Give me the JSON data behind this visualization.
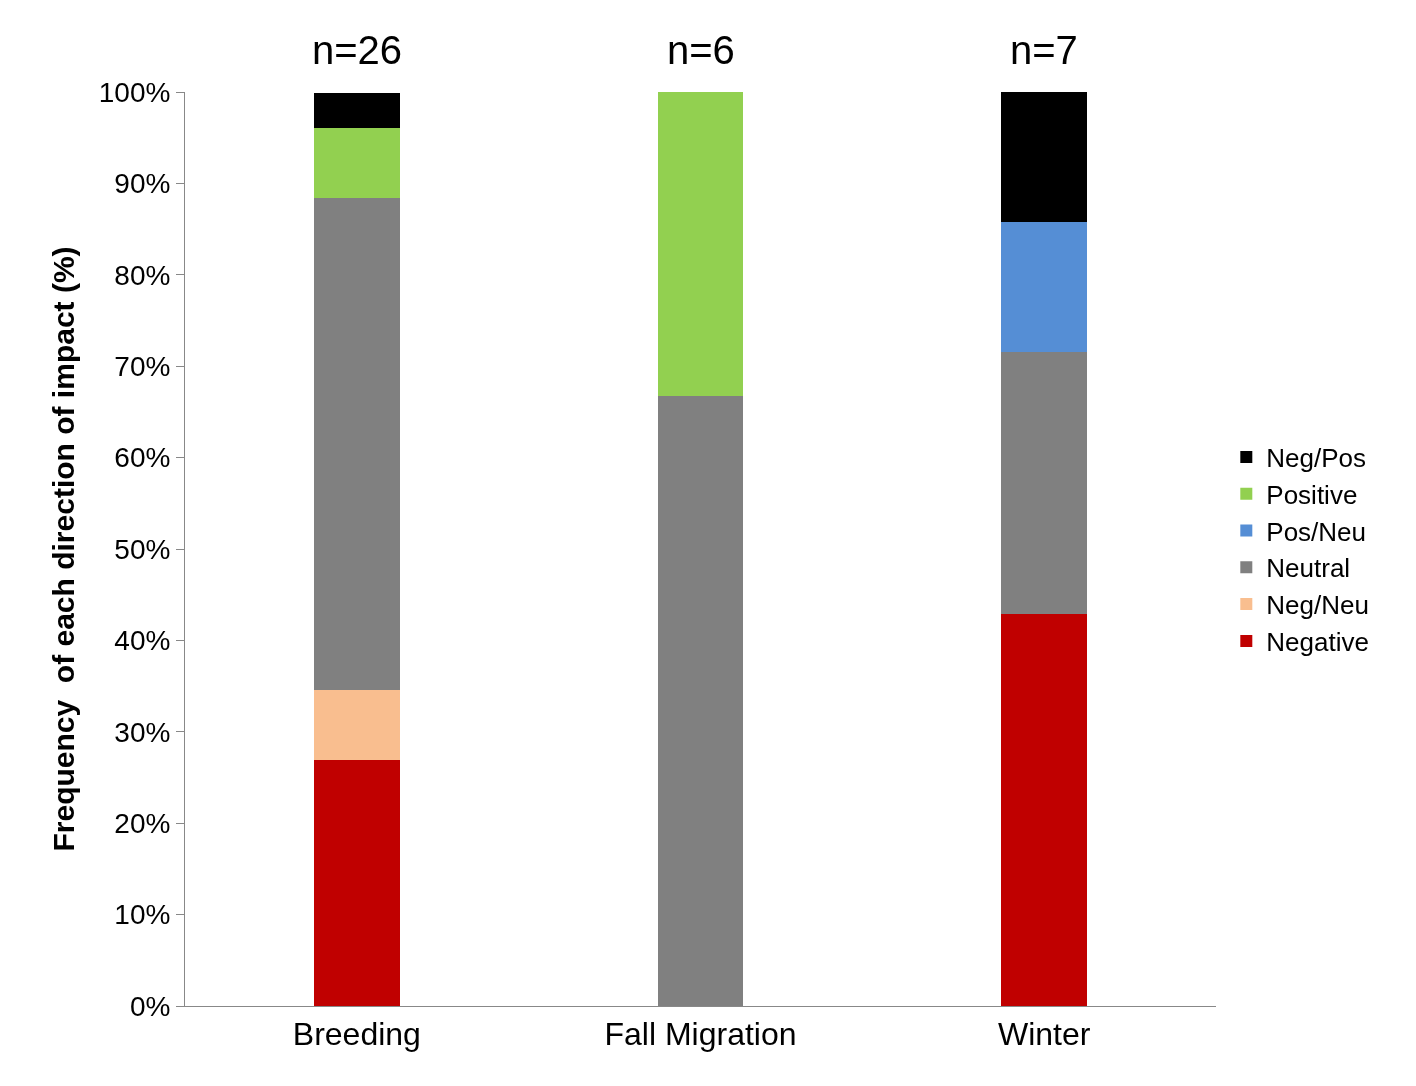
{
  "chart_data": {
    "type": "bar",
    "stacked": true,
    "ylabel": "Frequency  of each direction of impact (%)",
    "categories": [
      "Breeding",
      "Fall Migration",
      "Winter"
    ],
    "series": [
      {
        "name": "Negative",
        "color": "#c00000",
        "values": [
          26.9,
          null,
          42.9
        ]
      },
      {
        "name": "Neg/Neu",
        "color": "#f9be8f",
        "values": [
          7.7,
          null,
          null
        ]
      },
      {
        "name": "Neutral",
        "color": "#808080",
        "values": [
          53.8,
          66.7,
          28.6
        ]
      },
      {
        "name": "Pos/Neu",
        "color": "#558ed5",
        "values": [
          null,
          null,
          14.3
        ]
      },
      {
        "name": "Positive",
        "color": "#92d050",
        "values": [
          7.7,
          33.3,
          null
        ]
      },
      {
        "name": "Neg/Pos",
        "color": "#000000",
        "values": [
          3.8,
          null,
          14.3
        ]
      }
    ],
    "annotations": [
      {
        "text": "n=26",
        "x": "Breeding",
        "y": 100
      },
      {
        "text": "n=6",
        "x": "Fall Migration",
        "y": 100
      },
      {
        "text": "n=7",
        "x": "Winter",
        "y": 100
      }
    ],
    "ylim": [
      0,
      100
    ],
    "yticks": [
      {
        "value": 0,
        "label": "0%"
      },
      {
        "value": 10,
        "label": "10%"
      },
      {
        "value": 20,
        "label": "20%"
      },
      {
        "value": 30,
        "label": "30%"
      },
      {
        "value": 40,
        "label": "40%"
      },
      {
        "value": 50,
        "label": "50%"
      },
      {
        "value": 60,
        "label": "60%"
      },
      {
        "value": 70,
        "label": "70%"
      },
      {
        "value": 80,
        "label": "80%"
      },
      {
        "value": 90,
        "label": "90%"
      },
      {
        "value": 100,
        "label": "100%"
      }
    ],
    "grid": false,
    "legend": "right"
  }
}
